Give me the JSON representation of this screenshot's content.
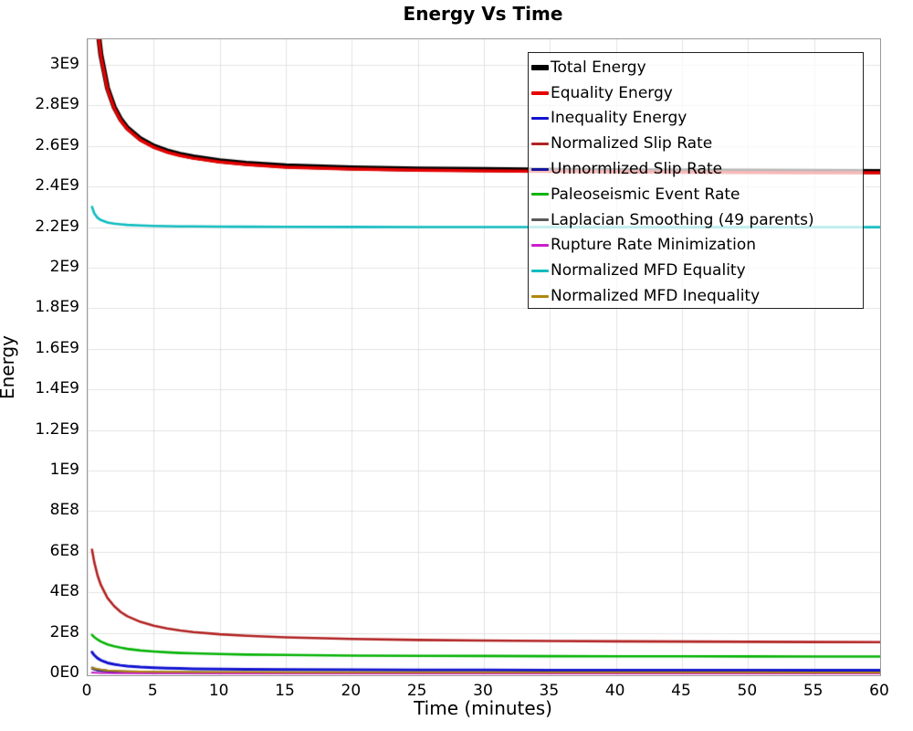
{
  "title": "Energy Vs Time",
  "axes": {
    "x": {
      "label": "Time (minutes)",
      "min": 0,
      "max": 60,
      "tick_step": 5,
      "ticks": [
        "0",
        "5",
        "10",
        "15",
        "20",
        "25",
        "30",
        "35",
        "40",
        "45",
        "50",
        "55",
        "60"
      ]
    },
    "y": {
      "label": "Energy",
      "min": 0,
      "max": 3126000000,
      "tick_step": 200000000,
      "ticks": [
        "0E0",
        "2E8",
        "4E8",
        "6E8",
        "8E8",
        "1E9",
        "1.2E9",
        "1.4E9",
        "1.6E9",
        "1.8E9",
        "2E9",
        "2.2E9",
        "2.4E9",
        "2.6E9",
        "2.8E9",
        "3E9"
      ]
    }
  },
  "style": {
    "grid_color": "#e3e3e3",
    "frame_color": "#9a9a9a",
    "legend_border": "#222222",
    "background": "#ffffff"
  },
  "chart_data": {
    "type": "line",
    "title": "Energy Vs Time",
    "xlabel": "Time (minutes)",
    "ylabel": "Energy",
    "xlim": [
      0,
      60
    ],
    "ylim": [
      0,
      3126000000
    ],
    "grid": true,
    "legend_position": "top-right-inside",
    "x": [
      0.33,
      0.5,
      0.75,
      1,
      1.5,
      2,
      2.5,
      3,
      4,
      5,
      6,
      7,
      8,
      10,
      12,
      15,
      20,
      25,
      30,
      35,
      40,
      45,
      50,
      55,
      60
    ],
    "series": [
      {
        "name": "Total Energy",
        "color": "#000000",
        "line_width": 5.5,
        "scale": 1000000000.0,
        "values": [
          3.657,
          3.41,
          3.189,
          3.05,
          2.886,
          2.793,
          2.732,
          2.69,
          2.635,
          2.6,
          2.576,
          2.559,
          2.546,
          2.527,
          2.515,
          2.502,
          2.492,
          2.487,
          2.484,
          2.481,
          2.479,
          2.477,
          2.476,
          2.475,
          2.474
        ]
      },
      {
        "name": "Equality Energy",
        "color": "#e60000",
        "line_width": 3.5,
        "scale": 1000000000.0,
        "values": [
          3.651,
          3.404,
          3.183,
          3.044,
          2.88,
          2.787,
          2.726,
          2.684,
          2.629,
          2.594,
          2.57,
          2.553,
          2.54,
          2.521,
          2.509,
          2.496,
          2.486,
          2.481,
          2.478,
          2.475,
          2.473,
          2.471,
          2.47,
          2.469,
          2.468
        ]
      },
      {
        "name": "Inequality Energy",
        "color": "#1212d0",
        "line_width": 3,
        "scale": 100000000.0,
        "values": [
          1.05,
          0.9,
          0.75,
          0.65,
          0.52,
          0.45,
          0.4,
          0.36,
          0.31,
          0.28,
          0.26,
          0.243,
          0.23,
          0.213,
          0.2,
          0.19,
          0.178,
          0.17,
          0.165,
          0.162,
          0.159,
          0.157,
          0.155,
          0.154,
          0.153
        ]
      },
      {
        "name": "Normalized Slip Rate",
        "color": "#b22222",
        "line_width": 2.6,
        "scale": 100000000.0,
        "values": [
          6.1,
          5.49,
          4.83,
          4.36,
          3.72,
          3.32,
          3.03,
          2.82,
          2.54,
          2.35,
          2.22,
          2.12,
          2.04,
          1.93,
          1.86,
          1.78,
          1.7,
          1.65,
          1.62,
          1.6,
          1.58,
          1.57,
          1.56,
          1.55,
          1.54
        ]
      },
      {
        "name": "Unnormlized Slip Rate",
        "color": "#16169b",
        "line_width": 2,
        "scale": 10000000.0,
        "values": [
          2.3,
          1.9,
          1.5,
          1.2,
          0.85,
          0.65,
          0.52,
          0.44,
          0.33,
          0.27,
          0.23,
          0.2,
          0.18,
          0.15,
          0.13,
          0.11,
          0.09,
          0.08,
          0.075,
          0.07,
          0.067,
          0.064,
          0.062,
          0.06,
          0.06
        ]
      },
      {
        "name": "Paleoseismic Event Rate",
        "color": "#06b306",
        "line_width": 2.6,
        "scale": 100000000.0,
        "values": [
          1.9,
          1.79,
          1.67,
          1.57,
          1.43,
          1.34,
          1.27,
          1.21,
          1.13,
          1.08,
          1.04,
          1.01,
          0.99,
          0.96,
          0.93,
          0.91,
          0.88,
          0.87,
          0.86,
          0.85,
          0.847,
          0.843,
          0.84,
          0.835,
          0.83
        ]
      },
      {
        "name": "Laplacian Smoothing (49 parents)",
        "color": "#5a5a5a",
        "line_width": 2,
        "scale": 10000000.0,
        "values": [
          3.0,
          2.6,
          2.2,
          1.9,
          1.5,
          1.25,
          1.1,
          1.0,
          0.85,
          0.76,
          0.7,
          0.66,
          0.63,
          0.58,
          0.55,
          0.52,
          0.49,
          0.47,
          0.46,
          0.45,
          0.45,
          0.44,
          0.44,
          0.43,
          0.43
        ]
      },
      {
        "name": "Rupture Rate Minimization",
        "color": "#cc1ecc",
        "line_width": 2,
        "scale": 10000000.0,
        "values": [
          0.5,
          0.4,
          0.3,
          0.25,
          0.18,
          0.14,
          0.12,
          0.1,
          0.08,
          0.07,
          0.065,
          0.06,
          0.058,
          0.054,
          0.05,
          0.047,
          0.043,
          0.04,
          0.038,
          0.036,
          0.035,
          0.034,
          0.033,
          0.032,
          0.03
        ]
      },
      {
        "name": "Normalized MFD Equality",
        "color": "#0fbcc0",
        "line_width": 2.6,
        "scale": 1000000000.0,
        "values": [
          2.3,
          2.268,
          2.246,
          2.235,
          2.223,
          2.217,
          2.214,
          2.211,
          2.208,
          2.206,
          2.205,
          2.204,
          2.2037,
          2.2027,
          2.202,
          2.2015,
          2.201,
          2.2005,
          2.2003,
          2.2002,
          2.2001,
          2.2,
          2.2,
          2.1999,
          2.1999
        ]
      },
      {
        "name": "Normalized MFD Inequality",
        "color": "#b1860b",
        "line_width": 2,
        "scale": 10000000.0,
        "values": [
          2.7,
          2.4,
          2.1,
          1.85,
          1.5,
          1.3,
          1.15,
          1.05,
          0.92,
          0.84,
          0.78,
          0.74,
          0.71,
          0.66,
          0.63,
          0.6,
          0.57,
          0.55,
          0.54,
          0.53,
          0.52,
          0.51,
          0.51,
          0.5,
          0.5
        ]
      }
    ]
  }
}
